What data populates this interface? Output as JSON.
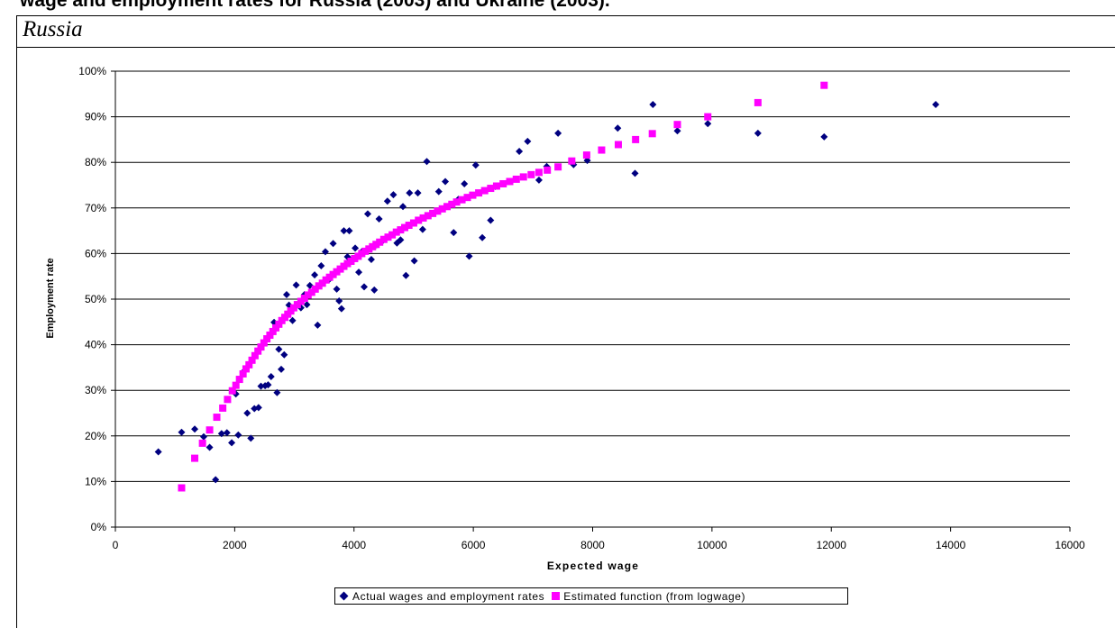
{
  "page": {
    "heading": "wage and employment rates for Russia (2003) and Ukraine (2003).",
    "country_label": "Russia"
  },
  "legend": {
    "actual_label": "Actual wages and employment rates",
    "estimated_label": "Estimated function (from logwage)"
  },
  "colors": {
    "actual": "#000080",
    "estimated": "#ff00ff",
    "gridline": "#000000"
  },
  "chart_data": {
    "type": "scatter",
    "title": "",
    "xlabel": "Expected wage",
    "ylabel": "Employment rate",
    "xlim": [
      0,
      16000
    ],
    "ylim": [
      0,
      100
    ],
    "x_ticks": [
      0,
      2000,
      4000,
      6000,
      8000,
      10000,
      12000,
      14000,
      16000
    ],
    "y_ticks": [
      0,
      10,
      20,
      30,
      40,
      50,
      60,
      70,
      80,
      90,
      100
    ],
    "y_tick_labels": [
      "0%",
      "10%",
      "20%",
      "30%",
      "40%",
      "50%",
      "60%",
      "70%",
      "80%",
      "90%",
      "100%"
    ],
    "grid": "horizontal",
    "legend_position": "bottom",
    "series": [
      {
        "name": "Actual wages and employment rates",
        "marker": "diamond",
        "points": [
          [
            720,
            16.5
          ],
          [
            1110,
            20.8
          ],
          [
            1330,
            21.5
          ],
          [
            1480,
            19.8
          ],
          [
            1580,
            17.5
          ],
          [
            1680,
            10.4
          ],
          [
            1780,
            20.5
          ],
          [
            1870,
            20.7
          ],
          [
            1950,
            18.5
          ],
          [
            2020,
            29.2
          ],
          [
            2060,
            20.2
          ],
          [
            2140,
            34.0
          ],
          [
            2210,
            25.0
          ],
          [
            2270,
            19.5
          ],
          [
            2330,
            26.0
          ],
          [
            2400,
            26.2
          ],
          [
            2440,
            30.9
          ],
          [
            2510,
            31.0
          ],
          [
            2560,
            31.2
          ],
          [
            2610,
            33.0
          ],
          [
            2660,
            44.9
          ],
          [
            2710,
            29.5
          ],
          [
            2740,
            39.0
          ],
          [
            2780,
            34.6
          ],
          [
            2830,
            37.8
          ],
          [
            2870,
            51.0
          ],
          [
            2910,
            48.7
          ],
          [
            2970,
            45.3
          ],
          [
            3030,
            53.1
          ],
          [
            3110,
            48.1
          ],
          [
            3170,
            51.0
          ],
          [
            3210,
            48.8
          ],
          [
            3260,
            53.0
          ],
          [
            3340,
            55.3
          ],
          [
            3390,
            44.3
          ],
          [
            3450,
            57.3
          ],
          [
            3520,
            60.4
          ],
          [
            3590,
            54.4
          ],
          [
            3650,
            62.2
          ],
          [
            3710,
            52.2
          ],
          [
            3750,
            49.6
          ],
          [
            3790,
            47.9
          ],
          [
            3830,
            65.0
          ],
          [
            3890,
            59.3
          ],
          [
            3920,
            65.0
          ],
          [
            3960,
            58.6
          ],
          [
            4020,
            61.2
          ],
          [
            4080,
            55.9
          ],
          [
            4130,
            60.4
          ],
          [
            4170,
            52.7
          ],
          [
            4230,
            68.7
          ],
          [
            4290,
            58.7
          ],
          [
            4340,
            52.0
          ],
          [
            4380,
            61.9
          ],
          [
            4420,
            67.6
          ],
          [
            4480,
            62.8
          ],
          [
            4560,
            71.5
          ],
          [
            4660,
            72.9
          ],
          [
            4720,
            62.3
          ],
          [
            4780,
            63.0
          ],
          [
            4820,
            70.3
          ],
          [
            4870,
            55.2
          ],
          [
            4930,
            73.3
          ],
          [
            5010,
            58.4
          ],
          [
            5070,
            73.3
          ],
          [
            5150,
            65.3
          ],
          [
            5220,
            80.2
          ],
          [
            5420,
            73.6
          ],
          [
            5530,
            75.8
          ],
          [
            5670,
            64.6
          ],
          [
            5750,
            71.9
          ],
          [
            5850,
            75.3
          ],
          [
            5930,
            59.4
          ],
          [
            6040,
            79.4
          ],
          [
            6150,
            63.5
          ],
          [
            6290,
            67.3
          ],
          [
            6370,
            74.7
          ],
          [
            6600,
            75.8
          ],
          [
            6770,
            82.4
          ],
          [
            6910,
            84.6
          ],
          [
            7100,
            76.1
          ],
          [
            7230,
            79.1
          ],
          [
            7420,
            86.4
          ],
          [
            7680,
            79.5
          ],
          [
            7910,
            80.4
          ],
          [
            8420,
            87.5
          ],
          [
            8710,
            77.6
          ],
          [
            9010,
            92.7
          ],
          [
            9420,
            86.9
          ],
          [
            9930,
            88.5
          ],
          [
            10770,
            86.4
          ],
          [
            11880,
            85.6
          ],
          [
            13750,
            92.7
          ]
        ]
      },
      {
        "name": "Estimated function (from logwage)",
        "marker": "square",
        "points": [
          [
            1110,
            8.6
          ],
          [
            1330,
            15.1
          ],
          [
            1460,
            18.4
          ],
          [
            1580,
            21.3
          ],
          [
            1700,
            24.1
          ],
          [
            1800,
            26.1
          ],
          [
            1880,
            28.0
          ],
          [
            1960,
            29.9
          ],
          [
            2020,
            31.1
          ],
          [
            2080,
            32.4
          ],
          [
            2140,
            33.6
          ],
          [
            2190,
            34.7
          ],
          [
            2240,
            35.6
          ],
          [
            2290,
            36.6
          ],
          [
            2340,
            37.6
          ],
          [
            2390,
            38.6
          ],
          [
            2440,
            39.5
          ],
          [
            2490,
            40.4
          ],
          [
            2540,
            41.3
          ],
          [
            2590,
            42.1
          ],
          [
            2640,
            42.9
          ],
          [
            2690,
            43.7
          ],
          [
            2740,
            44.5
          ],
          [
            2790,
            45.3
          ],
          [
            2840,
            46.0
          ],
          [
            2890,
            46.7
          ],
          [
            2940,
            47.4
          ],
          [
            2990,
            48.1
          ],
          [
            3050,
            48.8
          ],
          [
            3110,
            49.5
          ],
          [
            3170,
            50.2
          ],
          [
            3230,
            50.9
          ],
          [
            3290,
            51.5
          ],
          [
            3350,
            52.2
          ],
          [
            3410,
            52.9
          ],
          [
            3470,
            53.5
          ],
          [
            3530,
            54.2
          ],
          [
            3590,
            54.8
          ],
          [
            3650,
            55.4
          ],
          [
            3710,
            56.0
          ],
          [
            3770,
            56.6
          ],
          [
            3830,
            57.2
          ],
          [
            3890,
            57.8
          ],
          [
            3950,
            58.3
          ],
          [
            4010,
            58.9
          ],
          [
            4070,
            59.4
          ],
          [
            4130,
            60.0
          ],
          [
            4190,
            60.5
          ],
          [
            4250,
            61.0
          ],
          [
            4310,
            61.5
          ],
          [
            4370,
            62.0
          ],
          [
            4430,
            62.5
          ],
          [
            4500,
            63.1
          ],
          [
            4570,
            63.6
          ],
          [
            4640,
            64.1
          ],
          [
            4710,
            64.7
          ],
          [
            4780,
            65.2
          ],
          [
            4850,
            65.7
          ],
          [
            4920,
            66.2
          ],
          [
            5000,
            66.7
          ],
          [
            5080,
            67.3
          ],
          [
            5160,
            67.8
          ],
          [
            5240,
            68.3
          ],
          [
            5320,
            68.8
          ],
          [
            5400,
            69.3
          ],
          [
            5480,
            69.8
          ],
          [
            5560,
            70.3
          ],
          [
            5640,
            70.8
          ],
          [
            5720,
            71.3
          ],
          [
            5810,
            71.8
          ],
          [
            5900,
            72.3
          ],
          [
            5990,
            72.8
          ],
          [
            6090,
            73.3
          ],
          [
            6190,
            73.8
          ],
          [
            6290,
            74.3
          ],
          [
            6390,
            74.8
          ],
          [
            6500,
            75.3
          ],
          [
            6610,
            75.8
          ],
          [
            6720,
            76.3
          ],
          [
            6840,
            76.8
          ],
          [
            6970,
            77.3
          ],
          [
            7100,
            77.8
          ],
          [
            7240,
            78.3
          ],
          [
            7420,
            79.0
          ],
          [
            7650,
            80.3
          ],
          [
            7900,
            81.6
          ],
          [
            8150,
            82.7
          ],
          [
            8430,
            83.9
          ],
          [
            8720,
            85.0
          ],
          [
            9000,
            86.3
          ],
          [
            9420,
            88.3
          ],
          [
            9930,
            90.0
          ],
          [
            10770,
            93.1
          ],
          [
            11880,
            96.9
          ]
        ]
      }
    ]
  }
}
